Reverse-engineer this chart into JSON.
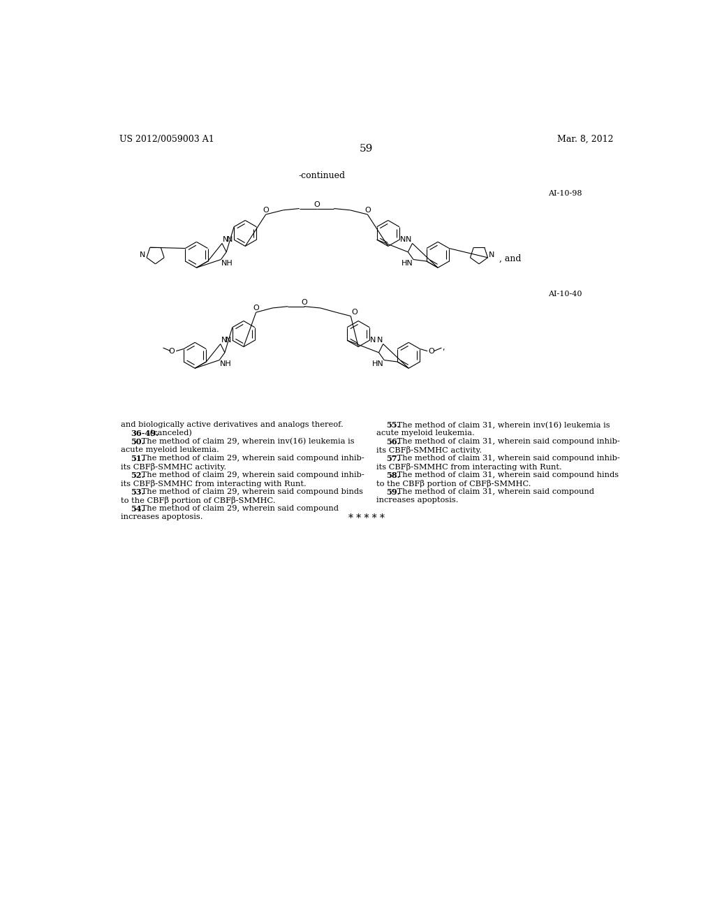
{
  "page_header_left": "US 2012/0059003 A1",
  "page_header_right": "Mar. 8, 2012",
  "page_number": "59",
  "continued_label": "-continued",
  "compound_label_1": "AI-10-98",
  "compound_label_2": "AI-10-40",
  "and_label": ", and",
  "background_color": "#ffffff",
  "text_color": "#000000",
  "body_text_left": [
    "and biologically active derivatives and analogs thereof.",
    "    36-49. (canceled)",
    "    50. The method of claim 29, wherein inv(16) leukemia is",
    "acute myeloid leukemia.",
    "    51. The method of claim 29, wherein said compound inhib-",
    "its CBFβ-SMMHC activity.",
    "    52. The method of claim 29, wherein said compound inhib-",
    "its CBFβ-SMMHC from interacting with Runt.",
    "    53. The method of claim 29, wherein said compound binds",
    "to the CBFβ portion of CBFβ-SMMHC.",
    "    54. The method of claim 29, wherein said compound",
    "increases apoptosis."
  ],
  "body_text_right": [
    "    55. The method of claim 31, wherein inv(16) leukemia is",
    "acute myeloid leukemia.",
    "    56. The method of claim 31, wherein said compound inhib-",
    "its CBFβ-SMMHC activity.",
    "    57. The method of claim 31, wherein said compound inhib-",
    "its CBFβ-SMMHC from interacting with Runt.",
    "    58. The method of claim 31, wherein said compound hinds",
    "to the CBFβ portion of CBFβ-SMMHC.",
    "    59. The method of claim 31, wherein said compound",
    "increases apoptosis."
  ],
  "asterisks": "* * * * *"
}
